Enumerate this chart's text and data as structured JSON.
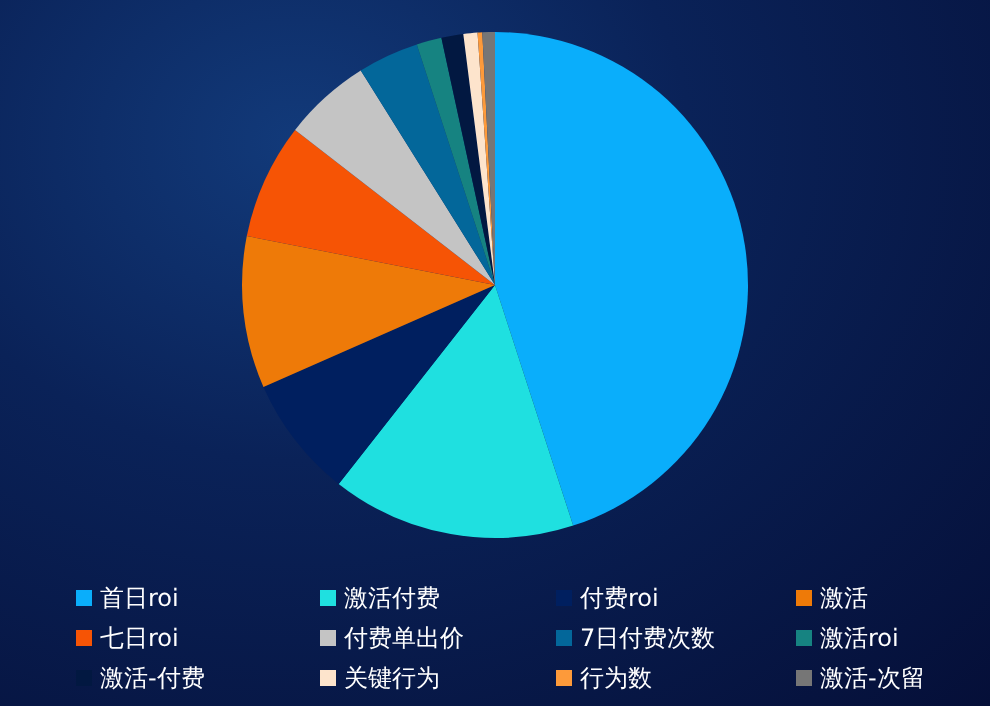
{
  "chart_data": {
    "type": "pie",
    "categories": [
      "首日roi",
      "激活付费",
      "付费roi",
      "激活",
      "七日roi",
      "付费单出价",
      "7日付费次数",
      "激活roi",
      "激活-付费",
      "关键行为",
      "行为数",
      "激活-次留"
    ],
    "values": [
      45,
      15.6,
      7.8,
      9.7,
      7.4,
      5.6,
      3.9,
      1.6,
      1.4,
      0.9,
      0.3,
      0.8
    ],
    "colors": [
      "#0aaefb",
      "#1fe0e0",
      "#001f5f",
      "#ee7a08",
      "#f65405",
      "#c4c4c4",
      "#03679a",
      "#168381",
      "#021841",
      "#fde4cc",
      "#fd9a3a",
      "#767676"
    ],
    "legend": "bottom"
  }
}
